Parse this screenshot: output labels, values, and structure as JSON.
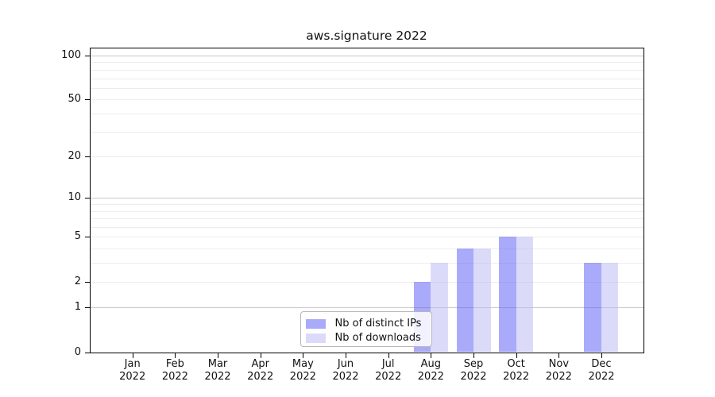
{
  "title": "aws.signature 2022",
  "chart_data": {
    "type": "bar",
    "title": "aws.signature 2022",
    "categories": [
      "Jan",
      "Feb",
      "Mar",
      "Apr",
      "May",
      "Jun",
      "Jul",
      "Aug",
      "Sep",
      "Oct",
      "Nov",
      "Dec"
    ],
    "x_sublabel_year": "2022",
    "series": [
      {
        "name": "Nb of distinct IPs",
        "color": "#5555F5",
        "alpha": 0.5,
        "values": [
          0,
          0,
          0,
          0,
          0,
          0,
          0,
          2,
          4,
          5,
          0,
          3
        ]
      },
      {
        "name": "Nb of downloads",
        "color": "#B7B7F3",
        "alpha": 0.5,
        "values": [
          0,
          0,
          0,
          0,
          0,
          0,
          0,
          3,
          4,
          5,
          0,
          3
        ]
      }
    ],
    "y_axis": {
      "scale": "log1p",
      "ticks": [
        0,
        1,
        2,
        5,
        10,
        20,
        50,
        100
      ],
      "decade_gridlines": [
        1,
        10,
        100
      ],
      "minor_gridlines": [
        2,
        3,
        4,
        5,
        6,
        7,
        8,
        9,
        20,
        30,
        40,
        50,
        60,
        70,
        80,
        90
      ],
      "ylim": [
        0,
        100
      ]
    },
    "grid": true,
    "legend_position": "lower center",
    "legend_items": [
      "Nb of distinct IPs",
      "Nb of downloads"
    ]
  },
  "colors": {
    "decade_grid": "#c9c9c9",
    "minor_grid": "#ededed",
    "spine": "#000000",
    "text": "#111111",
    "legend_border": "#b7b7b7"
  }
}
